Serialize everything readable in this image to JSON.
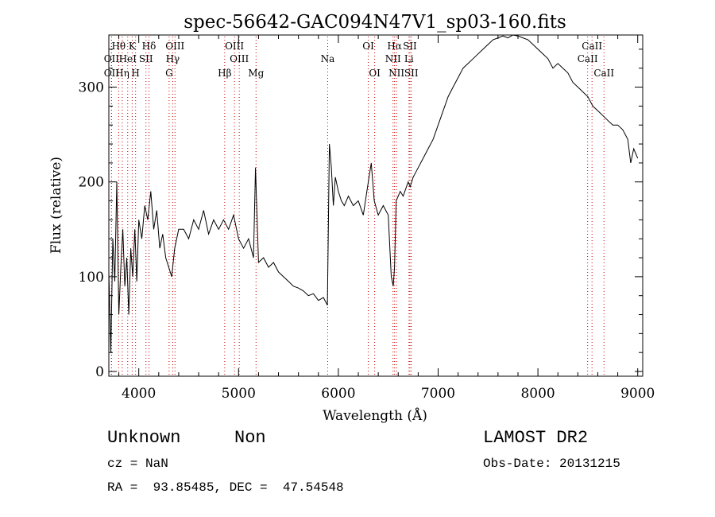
{
  "chart_data": {
    "type": "line",
    "title": "spec-56642-GAC094N47V1_sp03-160.fits",
    "xlabel": "Wavelength (Å)",
    "ylabel": "Flux (relative)",
    "xlim": [
      3700,
      9050
    ],
    "ylim": [
      -5,
      355
    ],
    "xticks": [
      4000,
      5000,
      6000,
      7000,
      8000,
      9000
    ],
    "yticks": [
      0,
      100,
      200,
      300
    ],
    "grid": false,
    "legend": "none",
    "line_color": "#000000",
    "marker_color": "#cc0000",
    "series": [
      {
        "x": [
          3700,
          3720,
          3740,
          3760,
          3780,
          3800,
          3820,
          3840,
          3860,
          3880,
          3900,
          3920,
          3940,
          3960,
          3980,
          4000,
          4030,
          4060,
          4090,
          4120,
          4150,
          4180,
          4210,
          4240,
          4270,
          4300,
          4330,
          4360,
          4400,
          4450,
          4500,
          4550,
          4600,
          4650,
          4700,
          4750,
          4800,
          4850,
          4900,
          4950,
          5000,
          5050,
          5100,
          5150,
          5170,
          5200,
          5250,
          5300,
          5350,
          5400,
          5450,
          5500,
          5550,
          5600,
          5650,
          5700,
          5750,
          5800,
          5850,
          5890,
          5910,
          5930,
          5950,
          5970,
          6000,
          6030,
          6060,
          6100,
          6150,
          6200,
          6250,
          6300,
          6330,
          6360,
          6400,
          6450,
          6500,
          6530,
          6550,
          6563,
          6580,
          6620,
          6650,
          6700,
          6720,
          6750,
          6800,
          6850,
          6900,
          6950,
          7000,
          7050,
          7100,
          7150,
          7200,
          7250,
          7300,
          7350,
          7400,
          7450,
          7500,
          7550,
          7600,
          7650,
          7700,
          7750,
          7800,
          7850,
          7900,
          7950,
          8000,
          8050,
          8100,
          8150,
          8200,
          8250,
          8300,
          8350,
          8400,
          8450,
          8500,
          8550,
          8600,
          8650,
          8700,
          8750,
          8800,
          8850,
          8900,
          8930,
          8960,
          9000
        ],
        "y": [
          105,
          20,
          140,
          95,
          200,
          60,
          110,
          150,
          90,
          120,
          60,
          130,
          100,
          150,
          95,
          160,
          140,
          175,
          160,
          190,
          150,
          170,
          130,
          145,
          120,
          110,
          100,
          130,
          150,
          150,
          140,
          160,
          150,
          170,
          145,
          160,
          150,
          160,
          150,
          165,
          140,
          130,
          140,
          120,
          215,
          115,
          120,
          110,
          115,
          105,
          100,
          95,
          90,
          88,
          85,
          80,
          82,
          75,
          78,
          70,
          240,
          215,
          175,
          205,
          190,
          180,
          175,
          185,
          175,
          180,
          165,
          200,
          220,
          180,
          165,
          175,
          165,
          100,
          90,
          110,
          180,
          190,
          185,
          200,
          195,
          205,
          215,
          225,
          235,
          245,
          260,
          275,
          290,
          300,
          310,
          320,
          325,
          330,
          335,
          340,
          345,
          350,
          352,
          354,
          352,
          355,
          354,
          352,
          350,
          345,
          340,
          335,
          330,
          320,
          325,
          320,
          315,
          305,
          300,
          295,
          290,
          280,
          275,
          270,
          265,
          260,
          260,
          255,
          245,
          220,
          235,
          225
        ]
      }
    ],
    "lines": [
      {
        "label": "Hθ",
        "x": 3798,
        "row": 0
      },
      {
        "label": "K",
        "x": 3934,
        "row": 0
      },
      {
        "label": "Hδ",
        "x": 4102,
        "row": 0
      },
      {
        "label": "OIII",
        "x": 4363,
        "row": 0
      },
      {
        "label": "OIII",
        "x": 4959,
        "row": 0
      },
      {
        "label": "OI",
        "x": 6300,
        "row": 0
      },
      {
        "label": "Hα",
        "x": 6563,
        "row": 0
      },
      {
        "label": "SII",
        "x": 6717,
        "row": 0
      },
      {
        "label": "CaII",
        "x": 8542,
        "row": 0
      },
      {
        "label": "OII",
        "x": 3727,
        "row": 1
      },
      {
        "label": "HeI",
        "x": 3889,
        "row": 1
      },
      {
        "label": "SII",
        "x": 4072,
        "row": 1
      },
      {
        "label": "Hγ",
        "x": 4340,
        "row": 1
      },
      {
        "label": "OIII",
        "x": 5007,
        "row": 1
      },
      {
        "label": "NII",
        "x": 6548,
        "row": 1
      },
      {
        "label": "Li",
        "x": 6708,
        "row": 1
      },
      {
        "label": "CaII",
        "x": 8498,
        "row": 1
      },
      {
        "label": "OII",
        "x": 3727,
        "row": 2
      },
      {
        "label": "Hη",
        "x": 3835,
        "row": 2
      },
      {
        "label": "H",
        "x": 3968,
        "row": 2
      },
      {
        "label": "G",
        "x": 4304,
        "row": 2
      },
      {
        "label": "Hβ",
        "x": 4861,
        "row": 2
      },
      {
        "label": "Mg",
        "x": 5175,
        "row": 2
      },
      {
        "label": "Na",
        "x": 5893,
        "row": 1
      },
      {
        "label": "OI",
        "x": 6364,
        "row": 2
      },
      {
        "label": "NII",
        "x": 6583,
        "row": 2
      },
      {
        "label": "SII",
        "x": 6731,
        "row": 2
      },
      {
        "label": "CaII",
        "x": 8662,
        "row": 2
      }
    ]
  },
  "info": {
    "obj_class": "Unknown",
    "obj_subclass": "Non",
    "cz_label": "cz = NaN",
    "coords": "RA =  93.85485, DEC =  47.54548",
    "survey": "LAMOST DR2",
    "obs_date": "Obs-Date: 20131215"
  }
}
